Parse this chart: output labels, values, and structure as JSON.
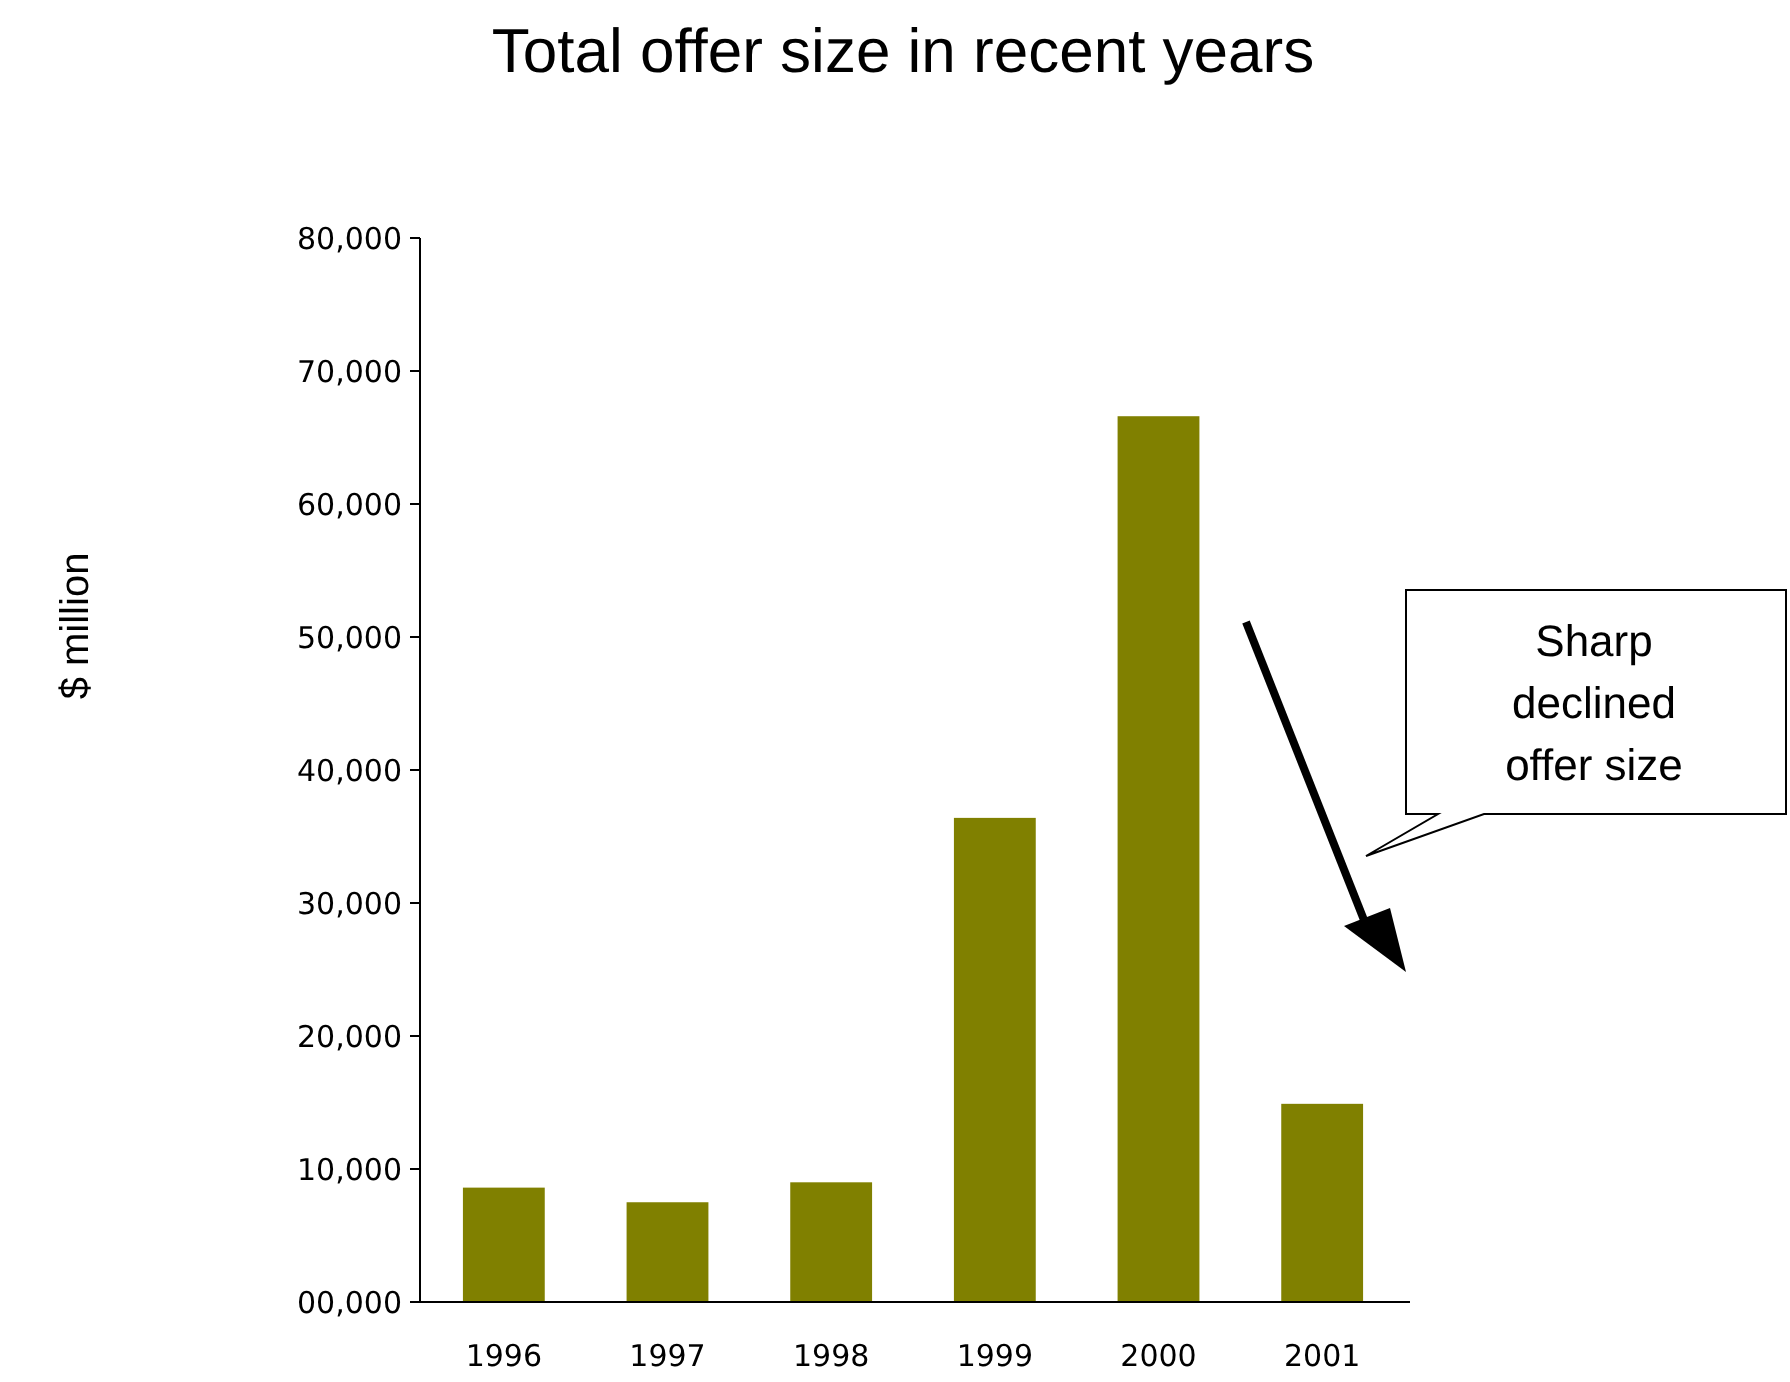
{
  "chart_data": {
    "type": "bar",
    "title": "Total offer size in recent years",
    "ylabel": "$ million",
    "categories": [
      "1996",
      "1997",
      "1998",
      "1999",
      "2000",
      "2001"
    ],
    "values": [
      8600,
      7500,
      9000,
      36400,
      66600,
      14900
    ],
    "color": "#808000",
    "ylim": [
      0,
      80000
    ],
    "yticks": [
      {
        "value": 0,
        "label": "00,000"
      },
      {
        "value": 10000,
        "label": "10,000"
      },
      {
        "value": 20000,
        "label": "20,000"
      },
      {
        "value": 30000,
        "label": "30,000"
      },
      {
        "value": 40000,
        "label": "40,000"
      },
      {
        "value": 50000,
        "label": "50,000"
      },
      {
        "value": 60000,
        "label": "60,000"
      },
      {
        "value": 70000,
        "label": "70,000"
      },
      {
        "value": 80000,
        "label": "80,000"
      }
    ],
    "grid": false,
    "annotations": [
      "Sharp declined offer size"
    ]
  }
}
